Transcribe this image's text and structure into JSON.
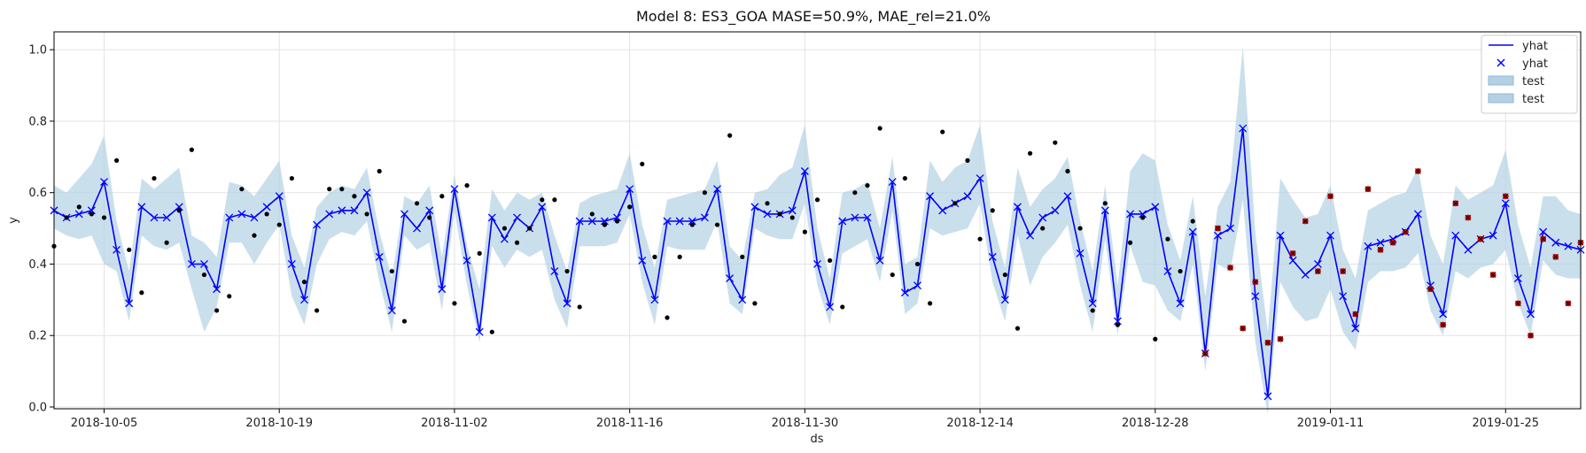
{
  "chart_data": {
    "type": "line",
    "title": "Model 8: ES3_GOA MASE=50.9%, MAE_rel=21.0%",
    "xlabel": "ds",
    "ylabel": "y",
    "x_start": "2018-10-01",
    "x_range": [
      "2018-10-01",
      "2019-01-31"
    ],
    "ylim": [
      -0.005,
      1.05
    ],
    "grid": true,
    "legend_position": "top-right",
    "x_ticks": [
      "2018-10-05",
      "2018-10-19",
      "2018-11-02",
      "2018-11-16",
      "2018-11-30",
      "2018-12-14",
      "2018-12-28",
      "2019-01-11",
      "2019-01-25"
    ],
    "y_ticks": [
      0.0,
      0.2,
      0.4,
      0.6,
      0.8,
      1.0
    ],
    "legend": [
      "yhat",
      "yhat",
      "test",
      "test"
    ],
    "colors": {
      "forecast_line": "#0000ff",
      "forecast_marker": "#0000ff",
      "interval_fill": "#b4d1e4",
      "actual_points": "#000000",
      "test_points": "#cc0000",
      "grid": "#e3e3e3"
    },
    "yhat": [
      0.55,
      0.53,
      0.54,
      0.55,
      0.63,
      0.44,
      0.29,
      0.56,
      0.53,
      0.53,
      0.56,
      0.4,
      0.4,
      0.33,
      0.53,
      0.54,
      0.53,
      0.56,
      0.59,
      0.4,
      0.3,
      0.51,
      0.54,
      0.55,
      0.55,
      0.6,
      0.42,
      0.27,
      0.54,
      0.5,
      0.55,
      0.33,
      0.61,
      0.41,
      0.21,
      0.53,
      0.47,
      0.53,
      0.5,
      0.56,
      0.38,
      0.29,
      0.52,
      0.52,
      0.52,
      0.53,
      0.61,
      0.41,
      0.3,
      0.52,
      0.52,
      0.52,
      0.53,
      0.61,
      0.36,
      0.3,
      0.56,
      0.54,
      0.54,
      0.55,
      0.66,
      0.4,
      0.28,
      0.52,
      0.53,
      0.53,
      0.41,
      0.63,
      0.32,
      0.34,
      0.59,
      0.55,
      0.57,
      0.59,
      0.64,
      0.42,
      0.3,
      0.56,
      0.48,
      0.53,
      0.55,
      0.59,
      0.43,
      0.29,
      0.55,
      0.24,
      0.54,
      0.54,
      0.56,
      0.38,
      0.29,
      0.49,
      0.15,
      0.48,
      0.5,
      0.78,
      0.31,
      0.03,
      0.48,
      0.41,
      0.37,
      0.4,
      0.48,
      0.31,
      0.22,
      0.45,
      0.46,
      0.47,
      0.49,
      0.54,
      0.34,
      0.26,
      0.48,
      0.44,
      0.47,
      0.48,
      0.57,
      0.36,
      0.26,
      0.49,
      0.46,
      0.45,
      0.44
    ],
    "upper": [
      0.62,
      0.6,
      0.64,
      0.68,
      0.76,
      0.52,
      0.38,
      0.64,
      0.61,
      0.64,
      0.67,
      0.48,
      0.46,
      0.42,
      0.63,
      0.62,
      0.59,
      0.64,
      0.69,
      0.48,
      0.39,
      0.56,
      0.6,
      0.62,
      0.61,
      0.67,
      0.49,
      0.36,
      0.59,
      0.57,
      0.62,
      0.42,
      0.65,
      0.45,
      0.33,
      0.61,
      0.55,
      0.6,
      0.58,
      0.6,
      0.48,
      0.38,
      0.57,
      0.59,
      0.6,
      0.61,
      0.71,
      0.51,
      0.39,
      0.58,
      0.59,
      0.6,
      0.61,
      0.69,
      0.45,
      0.41,
      0.6,
      0.61,
      0.65,
      0.67,
      0.79,
      0.5,
      0.36,
      0.6,
      0.61,
      0.63,
      0.5,
      0.7,
      0.4,
      0.42,
      0.69,
      0.63,
      0.67,
      0.69,
      0.79,
      0.52,
      0.39,
      0.67,
      0.56,
      0.61,
      0.64,
      0.7,
      0.52,
      0.38,
      0.62,
      0.34,
      0.66,
      0.71,
      0.69,
      0.51,
      0.41,
      0.59,
      0.31,
      0.56,
      0.63,
      1.01,
      0.49,
      0.21,
      0.64,
      0.58,
      0.53,
      0.54,
      0.62,
      0.44,
      0.36,
      0.55,
      0.57,
      0.59,
      0.6,
      0.67,
      0.48,
      0.4,
      0.62,
      0.58,
      0.6,
      0.62,
      0.72,
      0.51,
      0.39,
      0.59,
      0.59,
      0.55,
      0.54
    ],
    "lower": [
      0.5,
      0.48,
      0.47,
      0.48,
      0.4,
      0.38,
      0.24,
      0.48,
      0.45,
      0.44,
      0.46,
      0.33,
      0.21,
      0.28,
      0.46,
      0.46,
      0.4,
      0.46,
      0.51,
      0.31,
      0.23,
      0.4,
      0.47,
      0.49,
      0.48,
      0.52,
      0.35,
      0.21,
      0.48,
      0.44,
      0.46,
      0.27,
      0.55,
      0.34,
      0.18,
      0.45,
      0.39,
      0.44,
      0.42,
      0.44,
      0.3,
      0.22,
      0.45,
      0.45,
      0.45,
      0.46,
      0.54,
      0.35,
      0.23,
      0.45,
      0.44,
      0.44,
      0.44,
      0.52,
      0.29,
      0.26,
      0.5,
      0.48,
      0.47,
      0.47,
      0.57,
      0.34,
      0.23,
      0.43,
      0.45,
      0.47,
      0.35,
      0.55,
      0.26,
      0.29,
      0.5,
      0.48,
      0.49,
      0.5,
      0.57,
      0.35,
      0.24,
      0.48,
      0.34,
      0.42,
      0.46,
      0.51,
      0.34,
      0.21,
      0.47,
      0.2,
      0.45,
      0.35,
      0.34,
      0.27,
      0.24,
      0.4,
      0.1,
      0.4,
      0.38,
      0.58,
      0.18,
      -0.02,
      0.35,
      0.28,
      0.24,
      0.25,
      0.33,
      0.21,
      0.16,
      0.35,
      0.38,
      0.38,
      0.39,
      0.43,
      0.27,
      0.2,
      0.38,
      0.36,
      0.39,
      0.4,
      0.44,
      0.29,
      0.2,
      0.41,
      0.37,
      0.36,
      0.36
    ],
    "actual": [
      [
        0,
        0.45
      ],
      [
        1,
        0.53
      ],
      [
        2,
        0.56
      ],
      [
        3,
        0.54
      ],
      [
        4,
        0.53
      ],
      [
        5,
        0.69
      ],
      [
        6,
        0.44
      ],
      [
        7,
        0.32
      ],
      [
        8,
        0.64
      ],
      [
        9,
        0.46
      ],
      [
        10,
        0.55
      ],
      [
        11,
        0.72
      ],
      [
        12,
        0.37
      ],
      [
        13,
        0.27
      ],
      [
        14,
        0.31
      ],
      [
        15,
        0.61
      ],
      [
        16,
        0.48
      ],
      [
        17,
        0.54
      ],
      [
        18,
        0.51
      ],
      [
        19,
        0.64
      ],
      [
        20,
        0.35
      ],
      [
        21,
        0.27
      ],
      [
        22,
        0.61
      ],
      [
        23,
        0.61
      ],
      [
        24,
        0.59
      ],
      [
        25,
        0.54
      ],
      [
        26,
        0.66
      ],
      [
        27,
        0.38
      ],
      [
        28,
        0.24
      ],
      [
        29,
        0.57
      ],
      [
        30,
        0.53
      ],
      [
        31,
        0.59
      ],
      [
        32,
        0.29
      ],
      [
        33,
        0.62
      ],
      [
        34,
        0.43
      ],
      [
        35,
        0.21
      ],
      [
        36,
        0.5
      ],
      [
        37,
        0.46
      ],
      [
        38,
        0.5
      ],
      [
        39,
        0.58
      ],
      [
        40,
        0.58
      ],
      [
        41,
        0.38
      ],
      [
        42,
        0.28
      ],
      [
        43,
        0.54
      ],
      [
        44,
        0.51
      ],
      [
        45,
        0.52
      ],
      [
        46,
        0.56
      ],
      [
        47,
        0.68
      ],
      [
        48,
        0.42
      ],
      [
        49,
        0.25
      ],
      [
        50,
        0.42
      ],
      [
        51,
        0.51
      ],
      [
        52,
        0.6
      ],
      [
        53,
        0.51
      ],
      [
        54,
        0.76
      ],
      [
        55,
        0.42
      ],
      [
        56,
        0.29
      ],
      [
        57,
        0.57
      ],
      [
        58,
        0.54
      ],
      [
        59,
        0.53
      ],
      [
        60,
        0.49
      ],
      [
        61,
        0.58
      ],
      [
        62,
        0.41
      ],
      [
        63,
        0.28
      ],
      [
        64,
        0.6
      ],
      [
        65,
        0.62
      ],
      [
        66,
        0.78
      ],
      [
        67,
        0.37
      ],
      [
        68,
        0.64
      ],
      [
        69,
        0.4
      ],
      [
        70,
        0.29
      ],
      [
        71,
        0.77
      ],
      [
        72,
        0.57
      ],
      [
        73,
        0.69
      ],
      [
        74,
        0.47
      ],
      [
        75,
        0.55
      ],
      [
        76,
        0.37
      ],
      [
        77,
        0.22
      ],
      [
        78,
        0.71
      ],
      [
        79,
        0.5
      ],
      [
        80,
        0.74
      ],
      [
        81,
        0.66
      ],
      [
        82,
        0.5
      ],
      [
        83,
        0.27
      ],
      [
        84,
        0.57
      ],
      [
        85,
        0.23
      ],
      [
        86,
        0.46
      ],
      [
        87,
        0.53
      ],
      [
        88,
        0.19
      ],
      [
        89,
        0.47
      ],
      [
        90,
        0.38
      ],
      [
        91,
        0.52
      ]
    ],
    "test": [
      [
        92,
        0.15
      ],
      [
        93,
        0.5
      ],
      [
        94,
        0.39
      ],
      [
        95,
        0.22
      ],
      [
        96,
        0.35
      ],
      [
        97,
        0.18
      ],
      [
        98,
        0.19
      ],
      [
        99,
        0.43
      ],
      [
        100,
        0.52
      ],
      [
        101,
        0.38
      ],
      [
        102,
        0.59
      ],
      [
        103,
        0.38
      ],
      [
        104,
        0.26
      ],
      [
        105,
        0.61
      ],
      [
        106,
        0.44
      ],
      [
        107,
        0.46
      ],
      [
        108,
        0.49
      ],
      [
        109,
        0.66
      ],
      [
        110,
        0.33
      ],
      [
        111,
        0.23
      ],
      [
        112,
        0.57
      ],
      [
        113,
        0.53
      ],
      [
        114,
        0.47
      ],
      [
        115,
        0.37
      ],
      [
        116,
        0.59
      ],
      [
        117,
        0.29
      ],
      [
        118,
        0.2
      ],
      [
        119,
        0.47
      ],
      [
        120,
        0.42
      ],
      [
        121,
        0.29
      ],
      [
        122,
        0.46
      ]
    ]
  }
}
